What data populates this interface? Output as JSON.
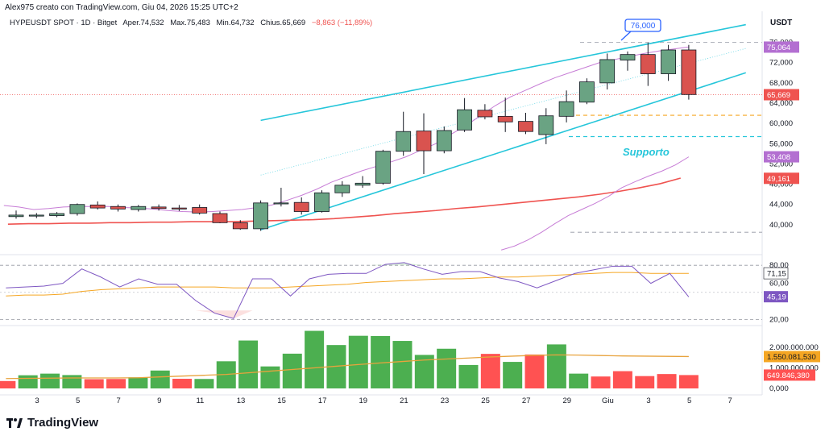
{
  "header": {
    "created_by": "Alex975 creato con TradingView.com, Giu 04, 2026 15:25 UTC+2"
  },
  "legend": {
    "symbol": "HYPEUSDT SPOT · 1D · Bitget",
    "open_label": "O",
    "open_text": "Aper.74,532",
    "high_label": "H",
    "high_text": "Max.75,483",
    "low_label": "L",
    "low_text": "Min.64,732",
    "close_label": "C",
    "close_text": "Chius.65,669",
    "change_text": "−8,863 (−11,89%)"
  },
  "currency": "USDT",
  "branding": "TradingView",
  "annotations": {
    "callout": "76,000",
    "support": "Supporto"
  },
  "colors": {
    "up": "#6aa383",
    "down": "#d9534f",
    "channel": "#26c6da",
    "ma_red": "#ef5350",
    "ma_purple": "#c77dd6",
    "rsi_line": "#7e57c2",
    "rsi_ma": "#f5a623",
    "vol_up": "#4caf50",
    "vol_down": "#ff5252",
    "vol_ma": "#e8a33d",
    "support_orange": "#f5a623",
    "support_blue": "#26c6da"
  },
  "chart_data": {
    "type": "candlestick",
    "price_axis": {
      "ticks": [
        "76,000",
        "72,000",
        "68,000",
        "64,000",
        "60,000",
        "56,000",
        "52,000",
        "48,000",
        "44,000",
        "40,000"
      ],
      "tick_values": [
        76,
        72,
        68,
        64,
        60,
        56,
        52,
        48,
        44,
        40
      ],
      "range": [
        36,
        78
      ],
      "price_labels": [
        {
          "text": "75,064",
          "value": 75.064,
          "color": "#b36fd1"
        },
        {
          "text": "65,669",
          "value": 65.669,
          "color": "#ef5350"
        },
        {
          "text": "53,408",
          "value": 53.408,
          "color": "#b36fd1"
        },
        {
          "text": "49,161",
          "value": 49.161,
          "color": "#ef5350"
        }
      ]
    },
    "x_axis": {
      "labels": [
        "3",
        "5",
        "7",
        "9",
        "11",
        "13",
        "15",
        "17",
        "19",
        "21",
        "23",
        "25",
        "27",
        "29",
        "Giu",
        "3",
        "5",
        "7"
      ],
      "label_index": [
        0,
        2,
        4,
        6,
        8,
        10,
        12,
        14,
        16,
        18,
        20,
        22,
        24,
        26,
        28,
        30,
        32,
        34
      ]
    },
    "candles": [
      {
        "o": 41.6,
        "h": 42.8,
        "l": 41.2,
        "c": 41.9
      },
      {
        "o": 41.7,
        "h": 42.3,
        "l": 41.3,
        "c": 41.9
      },
      {
        "o": 41.8,
        "h": 42.5,
        "l": 41.5,
        "c": 42.2
      },
      {
        "o": 42.2,
        "h": 44.2,
        "l": 41.8,
        "c": 44.0
      },
      {
        "o": 43.9,
        "h": 44.6,
        "l": 43.0,
        "c": 43.3
      },
      {
        "o": 43.6,
        "h": 44.0,
        "l": 42.6,
        "c": 43.1
      },
      {
        "o": 43.0,
        "h": 43.9,
        "l": 42.6,
        "c": 43.6
      },
      {
        "o": 43.5,
        "h": 44.0,
        "l": 42.8,
        "c": 43.2
      },
      {
        "o": 43.3,
        "h": 43.9,
        "l": 42.7,
        "c": 43.1
      },
      {
        "o": 43.4,
        "h": 44.0,
        "l": 42.0,
        "c": 42.3
      },
      {
        "o": 42.2,
        "h": 42.6,
        "l": 40.3,
        "c": 40.4
      },
      {
        "o": 40.4,
        "h": 40.9,
        "l": 39.0,
        "c": 39.2
      },
      {
        "o": 39.2,
        "h": 44.8,
        "l": 38.8,
        "c": 44.3
      },
      {
        "o": 44.3,
        "h": 47.3,
        "l": 43.6,
        "c": 44.3
      },
      {
        "o": 44.4,
        "h": 45.4,
        "l": 42.0,
        "c": 42.6
      },
      {
        "o": 42.6,
        "h": 46.8,
        "l": 42.4,
        "c": 46.3
      },
      {
        "o": 46.3,
        "h": 48.6,
        "l": 45.5,
        "c": 47.8
      },
      {
        "o": 47.8,
        "h": 49.6,
        "l": 47.3,
        "c": 48.2
      },
      {
        "o": 48.2,
        "h": 54.8,
        "l": 47.9,
        "c": 54.5
      },
      {
        "o": 54.5,
        "h": 62.3,
        "l": 53.6,
        "c": 58.4
      },
      {
        "o": 58.5,
        "h": 62.0,
        "l": 50.0,
        "c": 54.6
      },
      {
        "o": 54.6,
        "h": 59.4,
        "l": 54.1,
        "c": 58.6
      },
      {
        "o": 58.7,
        "h": 65.0,
        "l": 58.3,
        "c": 62.7
      },
      {
        "o": 62.6,
        "h": 63.8,
        "l": 60.8,
        "c": 61.3
      },
      {
        "o": 61.4,
        "h": 65.1,
        "l": 58.3,
        "c": 60.3
      },
      {
        "o": 60.4,
        "h": 62.1,
        "l": 57.9,
        "c": 58.4
      },
      {
        "o": 57.8,
        "h": 63.0,
        "l": 55.9,
        "c": 61.5
      },
      {
        "o": 61.4,
        "h": 66.5,
        "l": 60.2,
        "c": 64.3
      },
      {
        "o": 64.2,
        "h": 68.9,
        "l": 63.8,
        "c": 68.2
      },
      {
        "o": 68.0,
        "h": 73.8,
        "l": 66.7,
        "c": 72.6
      },
      {
        "o": 72.5,
        "h": 74.2,
        "l": 70.4,
        "c": 73.6
      },
      {
        "o": 73.6,
        "h": 75.9,
        "l": 67.4,
        "c": 69.8
      },
      {
        "o": 69.8,
        "h": 75.5,
        "l": 68.4,
        "c": 74.5
      },
      {
        "o": 74.5,
        "h": 75.5,
        "l": 64.7,
        "c": 65.7
      }
    ],
    "ma_red": [
      40.1,
      40.2,
      40.2,
      40.3,
      40.3,
      40.4,
      40.4,
      40.5,
      40.5,
      40.6,
      40.6,
      40.6,
      40.7,
      40.8,
      40.9,
      41.0,
      41.2,
      41.5,
      41.8,
      42.2,
      42.5,
      42.8,
      43.2,
      43.5,
      43.9,
      44.3,
      44.7,
      45.1,
      45.5,
      46.0,
      46.6,
      47.3,
      48.1,
      49.2
    ],
    "ma_purple": [
      43.8,
      43.5,
      43.0,
      43.2,
      43.5,
      43.6,
      43.6,
      43.6,
      43.4,
      43.3,
      43.1,
      42.8,
      42.6,
      42.5,
      42.6,
      42.8,
      43.0,
      43.4,
      43.9,
      44.8,
      45.8,
      47.0,
      48.4,
      49.5,
      50.6,
      51.5,
      52.4,
      53.4,
      54.7,
      56.0,
      57.8,
      59.5,
      61.5,
      63.5,
      65.2,
      66.5,
      67.8,
      69.0,
      70.0,
      71.0,
      72.0,
      72.6,
      73.2,
      73.8,
      74.3,
      74.7,
      75.1
    ],
    "ma_purple_lower": [
      35.0,
      35.8,
      37.0,
      38.5,
      40.2,
      41.8,
      43.0,
      44.2,
      45.6,
      47.3,
      48.5,
      49.6,
      50.6,
      51.8,
      53.4
    ],
    "channel": {
      "upper": {
        "i0": 12,
        "v0": 60.6,
        "i1": 35.8,
        "v1": 79.5
      },
      "lower": {
        "i0": 12,
        "v0": 39.0,
        "i1": 35.8,
        "v1": 70.0
      },
      "middle": {
        "i0": 12,
        "v0": 49.8,
        "i1": 35.8,
        "v1": 74.8
      }
    },
    "levels": [
      {
        "value": 76.0,
        "color": "#b2b5be"
      },
      {
        "value": 61.6,
        "color": "#f5a623"
      },
      {
        "value": 57.4,
        "color": "#26c6da"
      },
      {
        "value": 38.5,
        "color": "#b2b5be"
      }
    ],
    "rsi": {
      "ticks": [
        "80,00",
        "60,00",
        "20,00"
      ],
      "tick_values": [
        80,
        60,
        20
      ],
      "last_labels": [
        {
          "text": "71,15",
          "value": 71.15
        },
        {
          "text": "45,19",
          "value": 45.19
        }
      ],
      "values": [
        55,
        56,
        57,
        60,
        76,
        67,
        56,
        65,
        59,
        59,
        41,
        27,
        21,
        65,
        65,
        46,
        65,
        70,
        71,
        71,
        81,
        83,
        76,
        70,
        73,
        73,
        66,
        62,
        55,
        63,
        71,
        75,
        79,
        79,
        60,
        71,
        45
      ],
      "ma": [
        46,
        47,
        47,
        48,
        51,
        53,
        54,
        55,
        56,
        56,
        56,
        56,
        55,
        55,
        55,
        56,
        57,
        58,
        59,
        61,
        62,
        63,
        64,
        65,
        65,
        66,
        67,
        67,
        68,
        69,
        70,
        71,
        72,
        72,
        71,
        71,
        71
      ]
    },
    "volume": {
      "ticks": [
        "2.000.000.000",
        "1.000.000.000",
        "0,000"
      ],
      "tick_values": [
        2000000000,
        1000000000,
        0
      ],
      "last_labels": [
        {
          "text": "1.550.081,530",
          "value": 1550081530
        },
        {
          "text": "649.846,380",
          "value": 649846380
        }
      ],
      "values": [
        360000000,
        640000000,
        720000000,
        650000000,
        450000000,
        460000000,
        540000000,
        870000000,
        470000000,
        460000000,
        1320000000,
        2330000000,
        1070000000,
        1690000000,
        2800000000,
        2110000000,
        2560000000,
        2550000000,
        2310000000,
        1630000000,
        1930000000,
        1140000000,
        1680000000,
        1290000000,
        1650000000,
        2140000000,
        720000000,
        580000000,
        840000000,
        600000000,
        700000000,
        650000000
      ],
      "ma": [
        480000000,
        490000000,
        500000000,
        510000000,
        510000000,
        510000000,
        520000000,
        560000000,
        600000000,
        640000000,
        680000000,
        760000000,
        840000000,
        920000000,
        1000000000,
        1080000000,
        1160000000,
        1240000000,
        1310000000,
        1380000000,
        1430000000,
        1480000000,
        1530000000,
        1570000000,
        1610000000,
        1630000000,
        1620000000,
        1600000000,
        1580000000,
        1570000000,
        1560000000,
        1550000000
      ]
    }
  }
}
